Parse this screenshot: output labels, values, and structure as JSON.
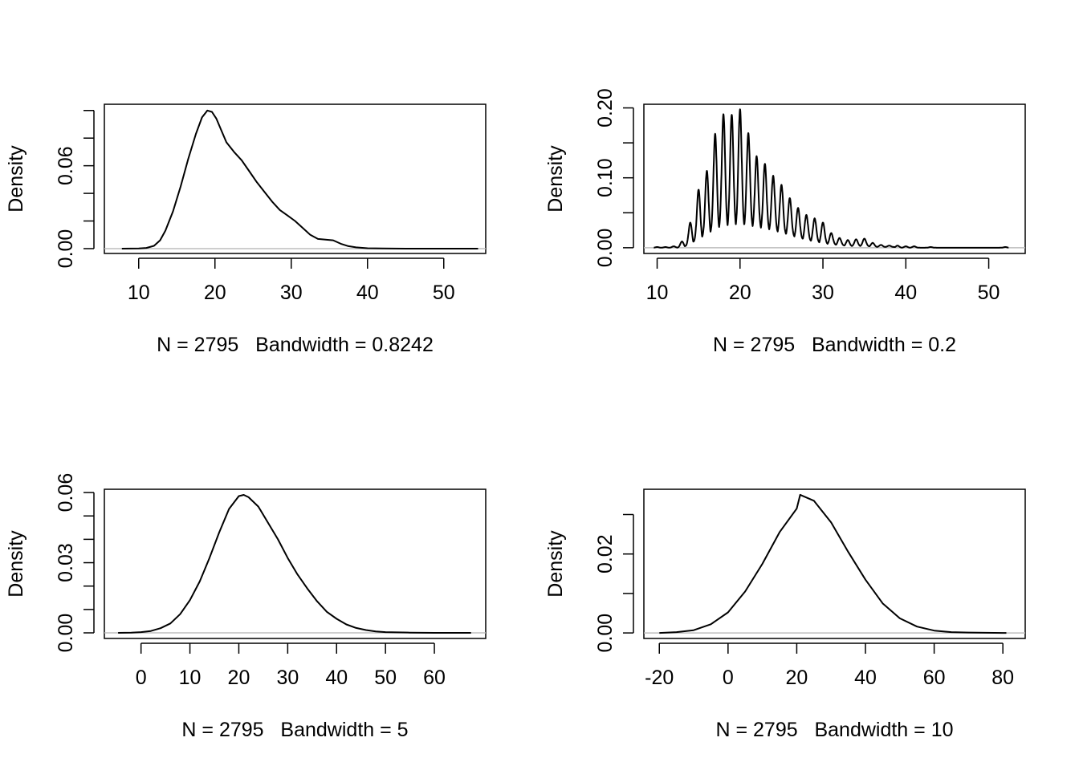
{
  "chart_data": [
    {
      "type": "line",
      "ylabel": "Density",
      "xlabel": "N = 2795   Bandwidth = 0.8242",
      "xlim": [
        5.5,
        55.5
      ],
      "ylim": [
        -0.0035,
        0.1045
      ],
      "x_ticks": [
        10,
        20,
        30,
        40,
        50
      ],
      "y_ticks": [
        0,
        0.02,
        0.04,
        0.06,
        0.08,
        0.1
      ],
      "y_tick_labels": {
        "0": "0.00",
        "0.06": "0.06"
      },
      "baseline": 0,
      "grid": false,
      "series": [
        {
          "x": [
            7.8,
            10,
            11,
            12,
            12.8,
            13.5,
            14.5,
            15.5,
            16.5,
            17.5,
            18.3,
            19,
            19.6,
            20.2,
            20.8,
            21.5,
            22.5,
            23.5,
            24.5,
            25.5,
            26.5,
            27.5,
            28.5,
            29.5,
            30.5,
            31.5,
            32.5,
            33.5,
            34.5,
            35.5,
            36.5,
            37.5,
            38.5,
            40,
            42,
            45,
            50,
            54.5
          ],
          "y": [
            0.0,
            0.0001,
            0.0005,
            0.002,
            0.006,
            0.013,
            0.027,
            0.045,
            0.065,
            0.083,
            0.095,
            0.1,
            0.099,
            0.094,
            0.086,
            0.077,
            0.07,
            0.064,
            0.056,
            0.048,
            0.041,
            0.034,
            0.028,
            0.024,
            0.02,
            0.015,
            0.01,
            0.007,
            0.0065,
            0.006,
            0.0035,
            0.0018,
            0.0009,
            0.0003,
            0.0001,
            0.0,
            0.0,
            0.0
          ]
        }
      ]
    },
    {
      "type": "line",
      "ylabel": "Density",
      "xlabel": "N = 2795   Bandwidth = 0.2",
      "xlim": [
        8.4,
        54.4
      ],
      "ylim": [
        -0.0082,
        0.2052
      ],
      "x_ticks": [
        10,
        20,
        30,
        40,
        50
      ],
      "y_ticks": [
        0,
        0.05,
        0.1,
        0.15,
        0.2
      ],
      "y_tick_labels": {
        "0": "0.00",
        "0.1": "0.10",
        "0.2": "0.20"
      },
      "baseline": 0,
      "grid": false,
      "series": [
        {
          "peak_positions": [
            10,
            11,
            12,
            13,
            14,
            15,
            16,
            17,
            18,
            19,
            20,
            21,
            22,
            23,
            24,
            25,
            26,
            27,
            28,
            29,
            30,
            31,
            32,
            33,
            34,
            35,
            36,
            37,
            38,
            39,
            40,
            41,
            43,
            52
          ],
          "peak_heights": [
            0.001,
            0.001,
            0.002,
            0.009,
            0.036,
            0.083,
            0.11,
            0.163,
            0.191,
            0.19,
            0.198,
            0.164,
            0.131,
            0.12,
            0.103,
            0.09,
            0.071,
            0.057,
            0.047,
            0.042,
            0.036,
            0.021,
            0.014,
            0.011,
            0.012,
            0.013,
            0.007,
            0.004,
            0.003,
            0.003,
            0.002,
            0.002,
            0.001,
            0.001
          ],
          "trough_levels": [
            0.0,
            0.0,
            0.0,
            0.0,
            0.002,
            0.008,
            0.014,
            0.02,
            0.024,
            0.025,
            0.026,
            0.026,
            0.025,
            0.023,
            0.021,
            0.018,
            0.015,
            0.012,
            0.009,
            0.007,
            0.005,
            0.004,
            0.003,
            0.002,
            0.002,
            0.002,
            0.001,
            0.001,
            0.001,
            0.0,
            0.0,
            0.0,
            0.0,
            0.0
          ]
        }
      ]
    },
    {
      "type": "line",
      "ylabel": "Density",
      "xlabel": "N = 2795   Bandwidth = 5",
      "xlim": [
        -7.5,
        70.5
      ],
      "ylim": [
        -0.0024,
        0.0614
      ],
      "x_ticks": [
        0,
        10,
        20,
        30,
        40,
        50,
        60
      ],
      "y_ticks": [
        0,
        0.01,
        0.02,
        0.03,
        0.04,
        0.05,
        0.06
      ],
      "y_tick_labels": {
        "0": "0.00",
        "0.03": "0.03",
        "0.06": "0.06"
      },
      "baseline": 0,
      "grid": false,
      "series": [
        {
          "x": [
            -4.7,
            -2,
            0,
            2,
            4,
            6,
            8,
            10,
            12,
            14,
            16,
            18,
            20,
            21,
            22,
            24,
            26,
            28,
            30,
            32,
            34,
            36,
            38,
            40,
            42,
            44,
            46,
            48,
            50,
            55,
            60,
            67.5
          ],
          "y": [
            0.0,
            0.0001,
            0.0003,
            0.0008,
            0.002,
            0.004,
            0.008,
            0.014,
            0.022,
            0.032,
            0.043,
            0.053,
            0.0585,
            0.059,
            0.058,
            0.054,
            0.047,
            0.04,
            0.032,
            0.025,
            0.019,
            0.0135,
            0.009,
            0.006,
            0.0036,
            0.0021,
            0.0012,
            0.0006,
            0.0003,
            0.0001,
            0.0,
            0.0
          ]
        }
      ]
    },
    {
      "type": "line",
      "ylabel": "Density",
      "xlabel": "N = 2795   Bandwidth = 10",
      "xlim": [
        -24.5,
        86.5
      ],
      "ylim": [
        -0.0014,
        0.0364
      ],
      "x_ticks": [
        -20,
        0,
        20,
        40,
        60,
        80
      ],
      "y_ticks": [
        0,
        0.01,
        0.02,
        0.03
      ],
      "y_tick_labels": {
        "0": "0.00",
        "0.02": "0.02"
      },
      "baseline": 0,
      "grid": false,
      "series": [
        {
          "x": [
            -20,
            -15,
            -10,
            -5,
            0,
            5,
            10,
            15,
            20,
            21,
            25,
            30,
            35,
            40,
            45,
            50,
            55,
            60,
            65,
            70,
            80,
            81
          ],
          "y": [
            0.0,
            0.0002,
            0.0007,
            0.0022,
            0.0052,
            0.0105,
            0.0175,
            0.0255,
            0.0315,
            0.035,
            0.0335,
            0.028,
            0.0205,
            0.0135,
            0.0075,
            0.0037,
            0.0016,
            0.0006,
            0.0002,
            0.0001,
            0.0,
            0.0
          ]
        }
      ]
    }
  ]
}
